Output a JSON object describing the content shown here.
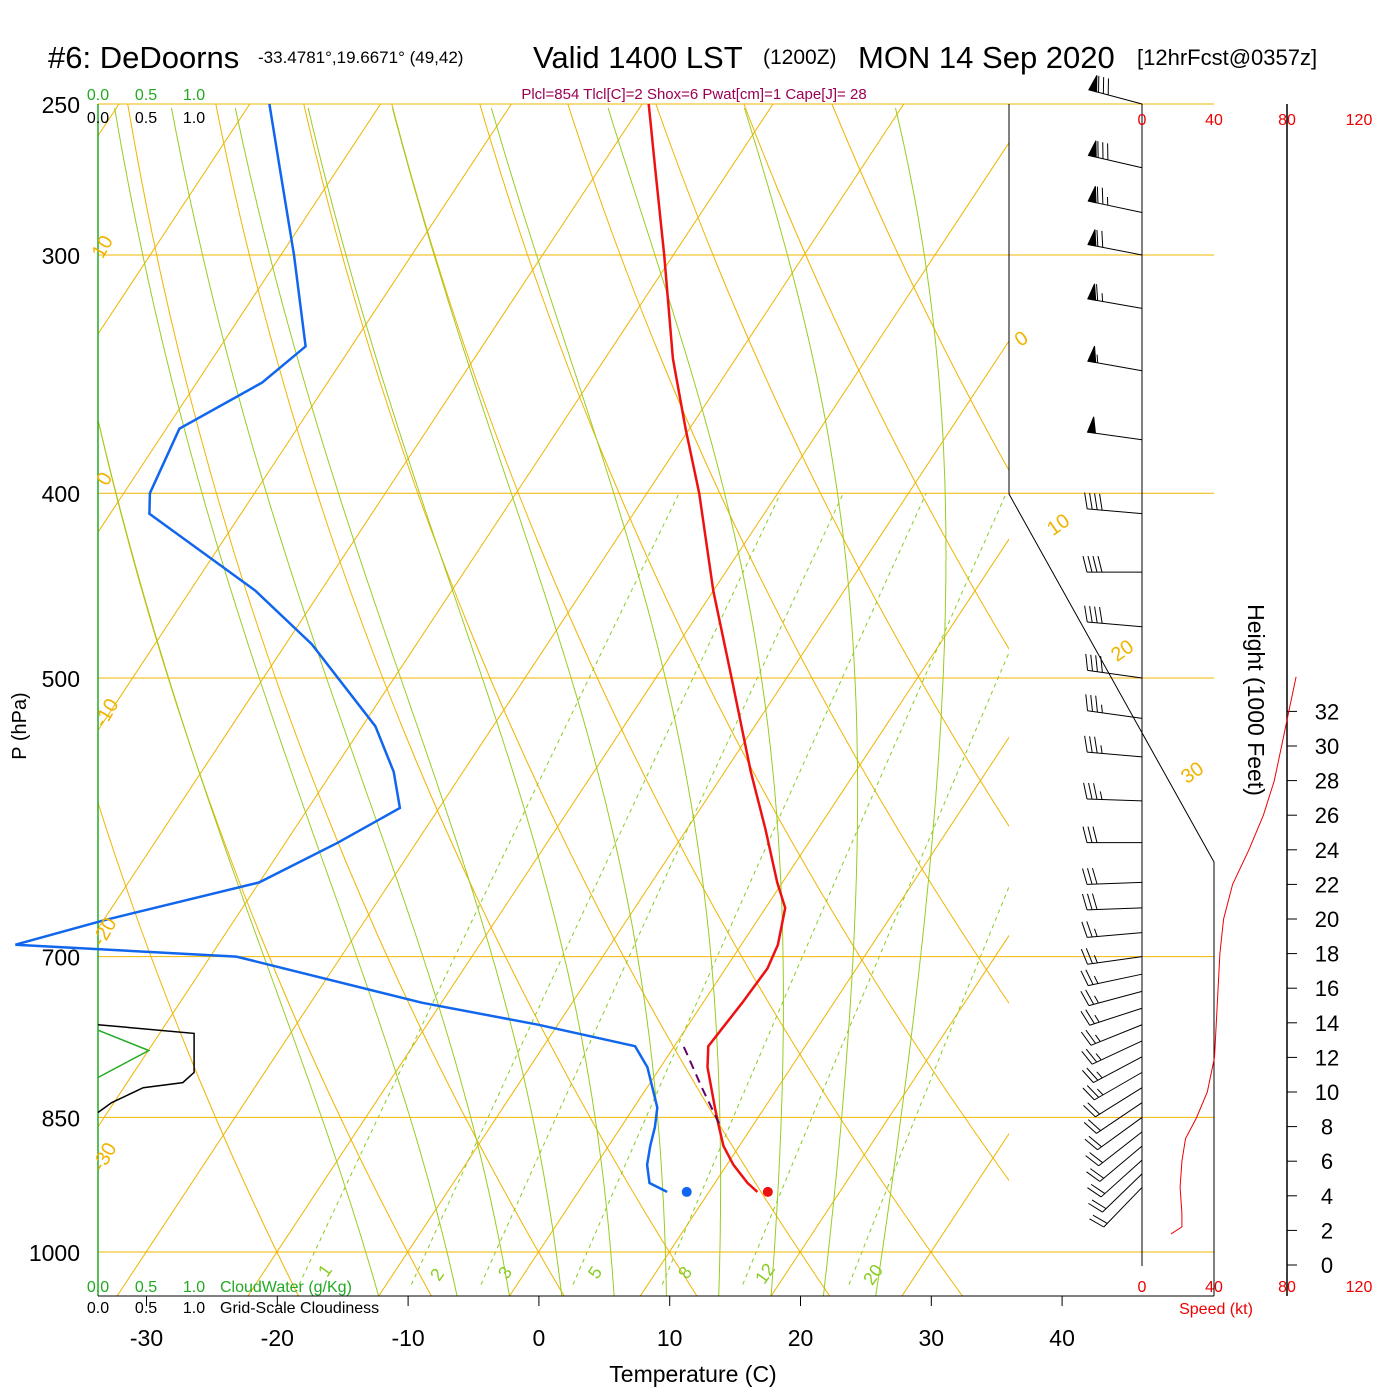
{
  "header": {
    "station": "#6: DeDoorns",
    "coords": "-33.4781°,19.6671° (49,42)",
    "valid": "Valid 1400 LST",
    "utc": "(1200Z)",
    "date": "MON 14 Sep 2020",
    "forecast": "[12hrFcst@0357z]"
  },
  "colors": {
    "temperature": "#ee1111",
    "dewpoint": "#1166ee",
    "isobar": "#f0b400",
    "moist_adiabat": "#99cc22",
    "mixing_ratio": "#88cc22",
    "parcel": "#660066",
    "indices": "#990055",
    "cloud_water": "#22aa22",
    "speed": "#ee0000"
  },
  "chart_data": {
    "type": "skew-t",
    "indices": "Plcl=854 Tlcl[C]=2 Shox=6 Pwat[cm]=1 Cape[J]= 28",
    "xlabel": "Temperature (C)",
    "ylabel": "P (hPa)",
    "xlim": [
      -33,
      36
    ],
    "ylim": [
      1000,
      250
    ],
    "x_ticks": [
      "-30",
      "-20",
      "-10",
      "0",
      "10",
      "20",
      "30",
      "40"
    ],
    "p_ticks": [
      {
        "p": 250,
        "label": "250"
      },
      {
        "p": 300,
        "label": "300"
      },
      {
        "p": 400,
        "label": "400"
      },
      {
        "p": 500,
        "label": "500"
      },
      {
        "p": 700,
        "label": "700"
      },
      {
        "p": 850,
        "label": "850"
      },
      {
        "p": 1000,
        "label": "1000"
      }
    ],
    "temperature": [
      {
        "p": 930,
        "t": 13.7
      },
      {
        "p": 920,
        "t": 12.5
      },
      {
        "p": 900,
        "t": 10.5
      },
      {
        "p": 880,
        "t": 8.8
      },
      {
        "p": 860,
        "t": 7.5
      },
      {
        "p": 840,
        "t": 6.2
      },
      {
        "p": 800,
        "t": 3.6
      },
      {
        "p": 780,
        "t": 2.6
      },
      {
        "p": 760,
        "t": 2.8
      },
      {
        "p": 740,
        "t": 3.0
      },
      {
        "p": 710,
        "t": 3.2
      },
      {
        "p": 690,
        "t": 2.8
      },
      {
        "p": 660,
        "t": 1.5
      },
      {
        "p": 640,
        "t": -0.4
      },
      {
        "p": 600,
        "t": -4.0
      },
      {
        "p": 560,
        "t": -8.0
      },
      {
        "p": 500,
        "t": -14.2
      },
      {
        "p": 450,
        "t": -20.0
      },
      {
        "p": 400,
        "t": -26.0
      },
      {
        "p": 370,
        "t": -30.3
      },
      {
        "p": 340,
        "t": -34.8
      },
      {
        "p": 300,
        "t": -40.7
      },
      {
        "p": 270,
        "t": -45.8
      },
      {
        "p": 250,
        "t": -49.5
      }
    ],
    "dewpoint": [
      {
        "p": 930,
        "t": 6.8
      },
      {
        "p": 920,
        "t": 5.0
      },
      {
        "p": 900,
        "t": 3.9
      },
      {
        "p": 880,
        "t": 3.2
      },
      {
        "p": 860,
        "t": 2.6
      },
      {
        "p": 840,
        "t": 1.8
      },
      {
        "p": 800,
        "t": -1.0
      },
      {
        "p": 780,
        "t": -3.0
      },
      {
        "p": 760,
        "t": -11.5
      },
      {
        "p": 740,
        "t": -21.5
      },
      {
        "p": 700,
        "t": -38.0
      },
      {
        "p": 690,
        "t": -55.5
      },
      {
        "p": 670,
        "t": -50.0
      },
      {
        "p": 640,
        "t": -40.0
      },
      {
        "p": 610,
        "t": -36.0
      },
      {
        "p": 585,
        "t": -33.0
      },
      {
        "p": 560,
        "t": -35.3
      },
      {
        "p": 530,
        "t": -39.0
      },
      {
        "p": 480,
        "t": -48.0
      },
      {
        "p": 450,
        "t": -55.0
      },
      {
        "p": 410,
        "t": -67.0
      },
      {
        "p": 400,
        "t": -68.0
      },
      {
        "p": 370,
        "t": -69.0
      },
      {
        "p": 350,
        "t": -65.0
      },
      {
        "p": 335,
        "t": -63.5
      },
      {
        "p": 300,
        "t": -69.0
      },
      {
        "p": 270,
        "t": -74.5
      },
      {
        "p": 250,
        "t": -78.5
      }
    ],
    "surface_temperature": {
      "p": 930,
      "t": 14.5
    },
    "surface_dewpoint": {
      "p": 930,
      "t": 8.3
    },
    "parcel": [
      {
        "p": 856,
        "t": 7.3
      },
      {
        "p": 820,
        "t": 4.2
      },
      {
        "p": 790,
        "t": 1.6
      },
      {
        "p": 780,
        "t": 0.7
      }
    ],
    "dry_adiabats": [
      -20,
      -10,
      0,
      10,
      20,
      30,
      40,
      50,
      60,
      70,
      80
    ],
    "dry_adiabat_labels": [
      "10",
      "0",
      "-10",
      "-20",
      "-30",
      "0",
      "10",
      "20",
      "30"
    ],
    "moist_adiabats": [
      -10,
      -4,
      0,
      4,
      8,
      12,
      16,
      20,
      24,
      28
    ],
    "mixing_ratios": [
      1,
      2,
      3,
      5,
      8,
      12,
      20
    ],
    "mixing_ratio_labels": [
      "1",
      "2",
      "3",
      "5",
      "8",
      "12",
      "20"
    ],
    "cloudiness": {
      "top_scale_green": [
        "0.0",
        "0.5",
        "1.0"
      ],
      "top_scale_black": [
        "0.0",
        "0.5",
        "1.0"
      ],
      "bottom_scale_green": [
        "0.0",
        "0.5",
        "1.0"
      ],
      "bottom_scale_black": [
        "0.0",
        "0.5",
        "1.0"
      ],
      "cloud_water_label": "CloudWater (g/Kg)",
      "grid_cloudiness_label": "Grid-Scale Cloudiness",
      "grid_cloudiness": [
        {
          "p": 760,
          "v": 0.0
        },
        {
          "p": 768,
          "v": 0.85
        },
        {
          "p": 805,
          "v": 0.85
        },
        {
          "p": 815,
          "v": 0.75
        },
        {
          "p": 820,
          "v": 0.4
        },
        {
          "p": 835,
          "v": 0.12
        },
        {
          "p": 845,
          "v": 0.0
        }
      ],
      "cloud_water": [
        {
          "p": 765,
          "v": 0.0
        },
        {
          "p": 784,
          "v": 0.45
        },
        {
          "p": 810,
          "v": 0.0
        }
      ]
    },
    "winds": {
      "ylabel": "Height (1000 Feet)",
      "height_ticks": [
        "0",
        "2",
        "4",
        "6",
        "8",
        "10",
        "12",
        "14",
        "16",
        "18",
        "20",
        "22",
        "24",
        "26",
        "28",
        "30",
        "32"
      ],
      "speed_ticks": [
        "0",
        "40",
        "80",
        "120"
      ],
      "speed_label": "Speed (kt)",
      "barbs": [
        {
          "p": 250,
          "dir": 285,
          "spd": 80
        },
        {
          "p": 270,
          "dir": 283,
          "spd": 80
        },
        {
          "p": 285,
          "dir": 282,
          "spd": 75
        },
        {
          "p": 300,
          "dir": 281,
          "spd": 72
        },
        {
          "p": 320,
          "dir": 280,
          "spd": 65
        },
        {
          "p": 345,
          "dir": 280,
          "spd": 55
        },
        {
          "p": 375,
          "dir": 278,
          "spd": 50
        },
        {
          "p": 410,
          "dir": 275,
          "spd": 40
        },
        {
          "p": 440,
          "dir": 270,
          "spd": 40
        },
        {
          "p": 470,
          "dir": 275,
          "spd": 40
        },
        {
          "p": 500,
          "dir": 278,
          "spd": 40
        },
        {
          "p": 525,
          "dir": 278,
          "spd": 35
        },
        {
          "p": 550,
          "dir": 275,
          "spd": 35
        },
        {
          "p": 580,
          "dir": 272,
          "spd": 35
        },
        {
          "p": 610,
          "dir": 270,
          "spd": 30
        },
        {
          "p": 640,
          "dir": 268,
          "spd": 30
        },
        {
          "p": 660,
          "dir": 268,
          "spd": 30
        },
        {
          "p": 680,
          "dir": 265,
          "spd": 25
        },
        {
          "p": 700,
          "dir": 262,
          "spd": 25
        },
        {
          "p": 715,
          "dir": 258,
          "spd": 25
        },
        {
          "p": 730,
          "dir": 255,
          "spd": 25
        },
        {
          "p": 745,
          "dir": 252,
          "spd": 25
        },
        {
          "p": 760,
          "dir": 248,
          "spd": 25
        },
        {
          "p": 775,
          "dir": 245,
          "spd": 25
        },
        {
          "p": 790,
          "dir": 242,
          "spd": 25
        },
        {
          "p": 805,
          "dir": 240,
          "spd": 25
        },
        {
          "p": 820,
          "dir": 238,
          "spd": 20
        },
        {
          "p": 835,
          "dir": 236,
          "spd": 20
        },
        {
          "p": 850,
          "dir": 234,
          "spd": 20
        },
        {
          "p": 865,
          "dir": 232,
          "spd": 20
        },
        {
          "p": 880,
          "dir": 230,
          "spd": 20
        },
        {
          "p": 895,
          "dir": 228,
          "spd": 20
        },
        {
          "p": 910,
          "dir": 226,
          "spd": 20
        },
        {
          "p": 925,
          "dir": 224,
          "spd": 20
        }
      ],
      "speed_profile": [
        {
          "h": 1.8,
          "s": 16
        },
        {
          "h": 2.2,
          "s": 22
        },
        {
          "h": 3.0,
          "s": 22
        },
        {
          "h": 4.5,
          "s": 21
        },
        {
          "h": 6.0,
          "s": 22
        },
        {
          "h": 7.3,
          "s": 24
        },
        {
          "h": 8.5,
          "s": 30
        },
        {
          "h": 10.0,
          "s": 36
        },
        {
          "h": 12.0,
          "s": 40
        },
        {
          "h": 14.0,
          "s": 41
        },
        {
          "h": 16.0,
          "s": 42
        },
        {
          "h": 18.0,
          "s": 43
        },
        {
          "h": 20.0,
          "s": 45
        },
        {
          "h": 22.0,
          "s": 50
        },
        {
          "h": 24.0,
          "s": 59
        },
        {
          "h": 26.0,
          "s": 67
        },
        {
          "h": 28.0,
          "s": 73
        },
        {
          "h": 30.0,
          "s": 77
        },
        {
          "h": 32.0,
          "s": 81
        },
        {
          "h": 34.0,
          "s": 85
        }
      ]
    }
  }
}
